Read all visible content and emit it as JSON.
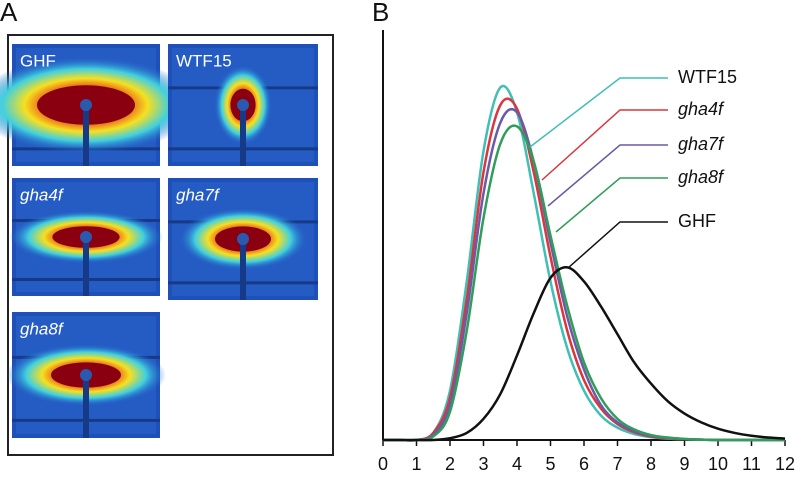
{
  "panel_a": {
    "label": "A",
    "images": [
      {
        "label": "GHF",
        "italic": false
      },
      {
        "label": "WTF15",
        "italic": false
      },
      {
        "label": "gha4f",
        "italic": true
      },
      {
        "label": "gha7f",
        "italic": true
      },
      {
        "label": "gha8f",
        "italic": true
      }
    ]
  },
  "chart_data": {
    "type": "line",
    "panel_label": "B",
    "x": [
      0,
      0.5,
      1,
      1.5,
      2,
      2.5,
      3,
      3.5,
      4,
      4.5,
      5,
      5.5,
      6,
      6.5,
      7,
      7.5,
      8,
      8.5,
      9,
      9.5,
      10,
      10.5,
      11,
      11.5,
      12
    ],
    "xlim": [
      0,
      12
    ],
    "xticks": [
      0,
      1,
      2,
      3,
      4,
      5,
      6,
      7,
      8,
      9,
      10,
      11,
      12
    ],
    "ylim": [
      0,
      1.05
    ],
    "series": [
      {
        "name": "WTF15",
        "color": "#3fbfb5",
        "italic": false,
        "values": [
          0,
          0,
          0,
          0.02,
          0.14,
          0.45,
          0.82,
          1.0,
          0.93,
          0.7,
          0.45,
          0.26,
          0.14,
          0.07,
          0.035,
          0.017,
          0.008,
          0.004,
          0.002,
          0.001,
          0,
          0,
          0,
          0,
          0
        ]
      },
      {
        "name": "gha4f",
        "color": "#d9363e",
        "italic": true,
        "values": [
          0,
          0,
          0,
          0.02,
          0.12,
          0.4,
          0.76,
          0.95,
          0.94,
          0.76,
          0.52,
          0.31,
          0.17,
          0.09,
          0.045,
          0.022,
          0.01,
          0.005,
          0.002,
          0.001,
          0,
          0,
          0,
          0,
          0
        ]
      },
      {
        "name": "gha7f",
        "color": "#6a5aa8",
        "italic": true,
        "values": [
          0,
          0,
          0,
          0.015,
          0.1,
          0.36,
          0.7,
          0.9,
          0.93,
          0.79,
          0.56,
          0.35,
          0.2,
          0.1,
          0.05,
          0.025,
          0.012,
          0.006,
          0.003,
          0.001,
          0,
          0,
          0,
          0,
          0
        ]
      },
      {
        "name": "gha8f",
        "color": "#2e9e58",
        "italic": true,
        "values": [
          0,
          0,
          0,
          0.01,
          0.08,
          0.31,
          0.63,
          0.84,
          0.89,
          0.79,
          0.58,
          0.38,
          0.22,
          0.12,
          0.06,
          0.03,
          0.014,
          0.007,
          0.003,
          0.001,
          0,
          0,
          0,
          0,
          0
        ]
      },
      {
        "name": "GHF",
        "color": "#111111",
        "italic": false,
        "values": [
          0,
          0,
          0,
          0,
          0.005,
          0.02,
          0.06,
          0.13,
          0.24,
          0.36,
          0.46,
          0.49,
          0.45,
          0.38,
          0.3,
          0.22,
          0.16,
          0.11,
          0.075,
          0.05,
          0.032,
          0.02,
          0.012,
          0.007,
          0.004
        ]
      }
    ]
  }
}
